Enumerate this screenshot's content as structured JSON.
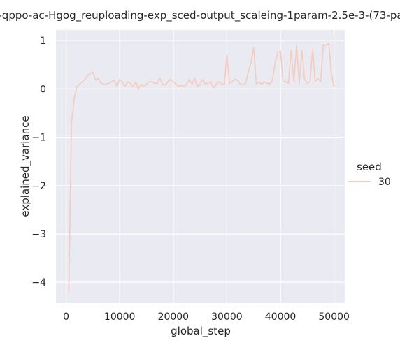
{
  "chart_data": {
    "type": "line",
    "title": "-qppo-ac-Hgog_reuploading-exp_sced-output_scaleing-1param-2.5e-3-(73-pa",
    "xlabel": "global_step",
    "ylabel": "explained_variance",
    "xlim": [
      -1900,
      52000
    ],
    "ylim": [
      -4.43,
      1.22
    ],
    "xticks": [
      0,
      10000,
      20000,
      30000,
      40000,
      50000
    ],
    "xtick_labels": [
      "0",
      "10000",
      "20000",
      "30000",
      "40000",
      "50000"
    ],
    "yticks": [
      -4,
      -3,
      -2,
      -1,
      0,
      1
    ],
    "ytick_labels": [
      "−4",
      "−3",
      "−2",
      "−1",
      "0",
      "1"
    ],
    "grid": true,
    "legend": {
      "title": "seed",
      "placement": "right",
      "entries": [
        "30"
      ]
    },
    "series": [
      {
        "name": "30",
        "color": "#f4cbbd",
        "x": [
          500,
          1000,
          1500,
          2000,
          2500,
          3000,
          3500,
          4000,
          4500,
          5000,
          5500,
          6000,
          6500,
          7000,
          7500,
          8000,
          8500,
          9000,
          9500,
          10000,
          10500,
          11000,
          11500,
          12000,
          12500,
          13000,
          13500,
          14000,
          14500,
          15000,
          15500,
          16000,
          16500,
          17000,
          17500,
          18000,
          18500,
          19000,
          19500,
          20000,
          20500,
          21000,
          21500,
          22000,
          22500,
          23000,
          23500,
          24000,
          24500,
          25000,
          25500,
          26000,
          26500,
          27000,
          27500,
          28000,
          28500,
          29000,
          29500,
          30000,
          30500,
          31000,
          31500,
          32000,
          32500,
          33000,
          33500,
          34000,
          34500,
          35000,
          35500,
          36000,
          36500,
          37000,
          37500,
          38000,
          38500,
          39000,
          39500,
          40000,
          40500,
          41000,
          41500,
          42000,
          42500,
          43000,
          43500,
          44000,
          44500,
          45000,
          45500,
          46000,
          46500,
          47000,
          47500,
          48000,
          48500,
          49000,
          49500,
          50000
        ],
        "values": [
          -4.2,
          -0.7,
          -0.2,
          0.05,
          0.1,
          0.15,
          0.2,
          0.27,
          0.32,
          0.35,
          0.18,
          0.22,
          0.12,
          0.1,
          0.1,
          0.12,
          0.15,
          0.18,
          0.05,
          0.2,
          0.15,
          0.05,
          0.15,
          0.12,
          0.05,
          0.15,
          0.0,
          0.1,
          0.05,
          0.1,
          0.15,
          0.15,
          0.12,
          0.12,
          0.22,
          0.1,
          0.08,
          0.15,
          0.2,
          0.15,
          0.1,
          0.05,
          0.08,
          0.05,
          0.1,
          0.2,
          0.1,
          0.22,
          0.05,
          0.1,
          0.2,
          0.1,
          0.12,
          0.15,
          0.02,
          0.1,
          0.15,
          0.1,
          0.1,
          0.7,
          0.12,
          0.15,
          0.2,
          0.18,
          0.1,
          0.08,
          0.12,
          0.35,
          0.55,
          0.85,
          0.1,
          0.15,
          0.1,
          0.15,
          0.12,
          0.1,
          0.18,
          0.55,
          0.75,
          0.78,
          0.15,
          0.15,
          0.12,
          0.8,
          0.15,
          0.9,
          0.12,
          0.8,
          0.2,
          0.12,
          0.15,
          0.82,
          0.15,
          0.22,
          0.15,
          0.92,
          0.9,
          0.95,
          0.3,
          0.05
        ]
      }
    ]
  }
}
